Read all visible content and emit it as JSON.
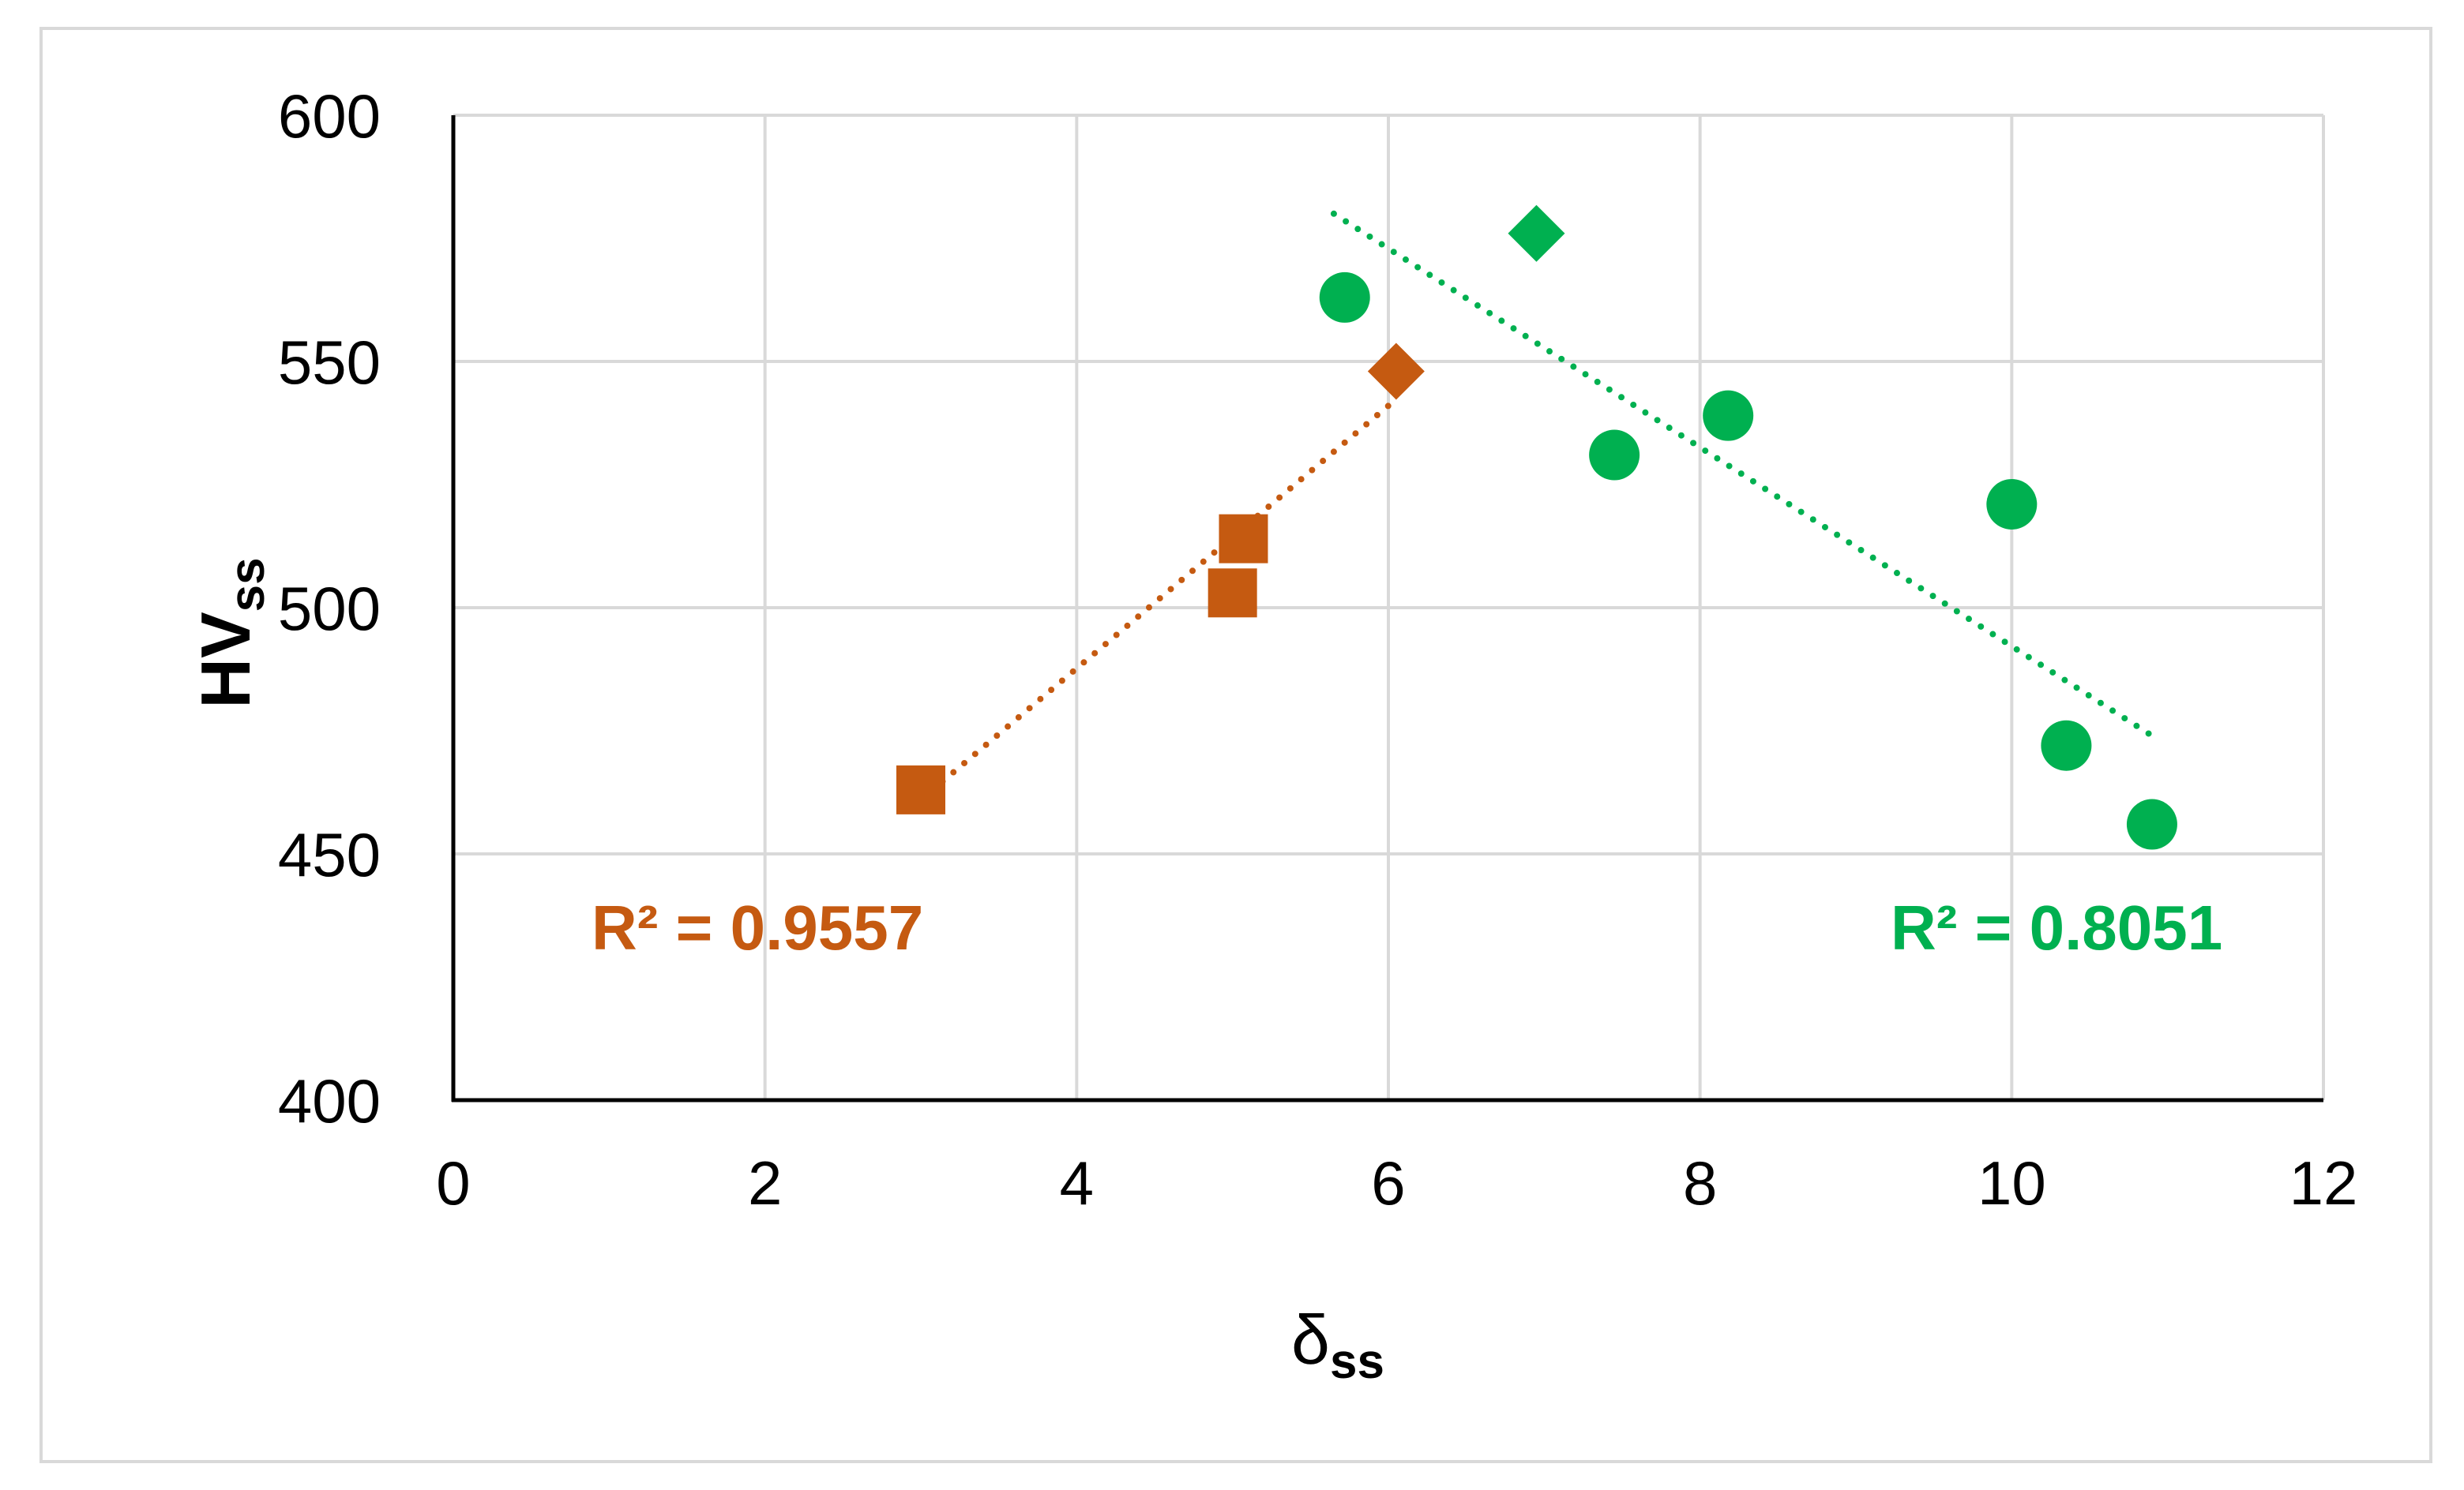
{
  "chart_data": {
    "type": "scatter",
    "xlabel": {
      "main": "δ",
      "sub": "ss"
    },
    "ylabel": {
      "main": "HV",
      "sub": "ss"
    },
    "xlim": [
      0,
      12
    ],
    "ylim": [
      400,
      600
    ],
    "x_ticks": [
      "0",
      "2",
      "4",
      "6",
      "8",
      "10",
      "12"
    ],
    "y_ticks": [
      "400",
      "450",
      "500",
      "550",
      "600"
    ],
    "grid": true,
    "series": [
      {
        "marker": "square",
        "color": "#c55a11",
        "points": [
          [
            3.0,
            463
          ],
          [
            5.0,
            503
          ],
          [
            5.07,
            514
          ]
        ]
      },
      {
        "marker": "diamond",
        "color": "#c55a11",
        "points": [
          [
            6.05,
            548
          ]
        ]
      },
      {
        "marker": "diamond",
        "color": "#00b050",
        "points": [
          [
            6.95,
            576
          ]
        ]
      },
      {
        "marker": "circle",
        "color": "#00b050",
        "points": [
          [
            5.72,
            563
          ],
          [
            7.45,
            531
          ],
          [
            8.18,
            539
          ],
          [
            10.0,
            521
          ],
          [
            10.35,
            472
          ],
          [
            10.9,
            456
          ]
        ]
      }
    ],
    "trendlines": [
      {
        "color": "#c55a11",
        "style": "dotted",
        "from": [
          3.0,
          461
        ],
        "to": [
          6.0,
          541
        ]
      },
      {
        "color": "#00b050",
        "style": "dotted",
        "from": [
          5.65,
          580
        ],
        "to": [
          10.9,
          474
        ]
      }
    ],
    "annotations": [
      {
        "text": "R² = 0.9557",
        "color": "#c55a11"
      },
      {
        "text": "R² = 0.8051",
        "color": "#00b050"
      }
    ]
  }
}
